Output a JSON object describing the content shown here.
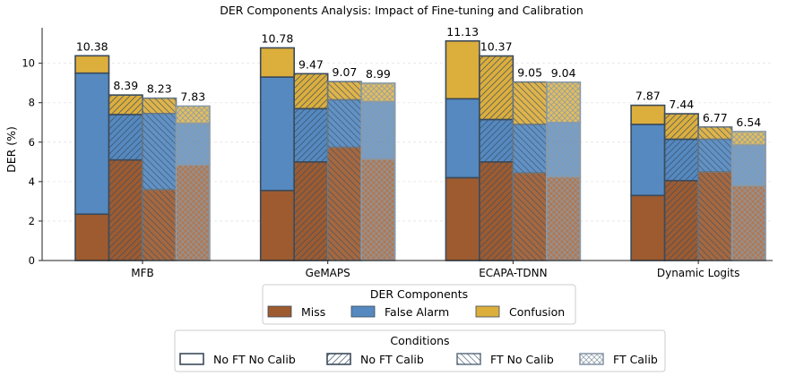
{
  "chart_data": {
    "type": "bar",
    "title": "DER Components Analysis: Impact of Fine-tuning and Calibration",
    "xlabel": "",
    "ylabel": "DER (%)",
    "ylim": [
      0,
      11.8
    ],
    "yticks": [
      "0",
      "2",
      "4",
      "6",
      "8",
      "10"
    ],
    "grid": "horizontal dashed",
    "stacked": true,
    "categories": [
      "MFB",
      "GeMAPS",
      "ECAPA-TDNN",
      "Dynamic Logits"
    ],
    "conditions": [
      "No FT No Calib",
      "No FT Calib",
      "FT No Calib",
      "FT Calib"
    ],
    "components": [
      "Miss",
      "False Alarm",
      "Confusion"
    ],
    "component_colors": {
      "Miss": "#9e5b2f",
      "False Alarm": "#5589c0",
      "Confusion": "#dcae3c"
    },
    "totals": [
      [
        "10.38",
        "8.39",
        "8.23",
        "7.83"
      ],
      [
        "10.78",
        "9.47",
        "9.07",
        "8.99"
      ],
      [
        "11.13",
        "10.37",
        "9.05",
        "9.04"
      ],
      [
        "7.87",
        "7.44",
        "6.77",
        "6.54"
      ]
    ],
    "series": [
      {
        "name": "Miss",
        "values": [
          [
            2.35,
            5.1,
            3.6,
            4.85
          ],
          [
            3.55,
            5.0,
            5.75,
            5.15
          ],
          [
            4.2,
            5.0,
            4.45,
            4.25
          ],
          [
            3.3,
            4.05,
            4.5,
            3.8
          ]
        ]
      },
      {
        "name": "False Alarm",
        "values": [
          [
            7.15,
            2.3,
            3.85,
            2.1
          ],
          [
            5.75,
            2.7,
            2.4,
            2.9
          ],
          [
            4.0,
            2.15,
            2.45,
            2.75
          ],
          [
            3.6,
            2.1,
            1.65,
            2.05
          ]
        ]
      },
      {
        "name": "Confusion",
        "values": [
          [
            0.88,
            0.99,
            0.78,
            0.88
          ],
          [
            1.48,
            1.77,
            0.92,
            0.94
          ],
          [
            2.93,
            3.22,
            2.15,
            2.04
          ],
          [
            0.97,
            1.29,
            0.62,
            0.69
          ]
        ]
      }
    ],
    "legend_components_title": "DER Components",
    "legend_conditions_title": "Conditions",
    "legend_placement": "bottom-center"
  }
}
